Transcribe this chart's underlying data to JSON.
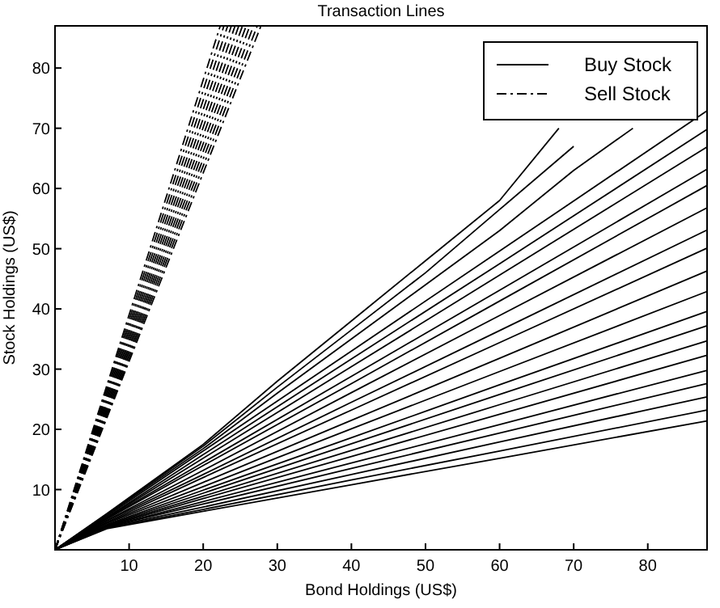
{
  "chart_data": {
    "type": "line",
    "title": "Transaction Lines",
    "xlabel": "Bond Holdings (US$)",
    "ylabel": "Stock Holdings (US$)",
    "xlim": [
      0,
      88
    ],
    "ylim": [
      0,
      87
    ],
    "xticks": [
      10,
      20,
      30,
      40,
      50,
      60,
      70,
      80
    ],
    "yticks": [
      10,
      20,
      30,
      40,
      50,
      60,
      70,
      80
    ],
    "grid": false,
    "legend": "top right",
    "marker": "none",
    "series": [
      {
        "name": "Buy Stock",
        "color": "#000000",
        "line_style": "solid",
        "x": [
          0,
          7,
          20,
          40,
          60,
          88
        ],
        "values": [
          0,
          3.5,
          6.4,
          10.8,
          15.2,
          21.4
        ]
      },
      {
        "color": "#000000",
        "line_style": "solid",
        "x": [
          0,
          7,
          20,
          40,
          60,
          88
        ],
        "values": [
          0,
          3.6,
          6.7,
          11.6,
          16.4,
          23.2
        ]
      },
      {
        "color": "#000000",
        "line_style": "solid",
        "x": [
          0,
          7,
          20,
          40,
          60,
          88
        ],
        "values": [
          0,
          3.7,
          7.1,
          12.5,
          17.9,
          25.4
        ]
      },
      {
        "color": "#000000",
        "line_style": "solid",
        "x": [
          0,
          7,
          20,
          40,
          60,
          88
        ],
        "values": [
          0,
          3.8,
          7.6,
          13.5,
          19.4,
          27.6
        ]
      },
      {
        "color": "#000000",
        "line_style": "solid",
        "x": [
          0,
          7,
          20,
          40,
          60,
          88
        ],
        "values": [
          0,
          3.8,
          8.0,
          14.4,
          20.8,
          29.8
        ]
      },
      {
        "color": "#000000",
        "line_style": "solid",
        "x": [
          0,
          7,
          20,
          40,
          60,
          88
        ],
        "values": [
          0,
          3.9,
          8.5,
          15.5,
          22.5,
          32.3
        ]
      },
      {
        "color": "#000000",
        "line_style": "solid",
        "x": [
          0,
          7,
          20,
          40,
          60,
          88
        ],
        "values": [
          0,
          4.0,
          8.9,
          16.5,
          24.1,
          34.7
        ]
      },
      {
        "color": "#000000",
        "line_style": "solid",
        "x": [
          0,
          7,
          20,
          40,
          60,
          88
        ],
        "values": [
          0,
          4.1,
          9.4,
          17.6,
          25.8,
          37.2
        ]
      },
      {
        "color": "#000000",
        "line_style": "solid",
        "x": [
          0,
          7,
          20,
          40,
          60,
          88
        ],
        "values": [
          0,
          4.2,
          9.9,
          18.6,
          27.4,
          39.6
        ]
      },
      {
        "color": "#000000",
        "line_style": "solid",
        "x": [
          0,
          7,
          20,
          40,
          60,
          88
        ],
        "values": [
          0,
          4.4,
          10.5,
          20.1,
          29.6,
          42.9
        ]
      },
      {
        "color": "#000000",
        "line_style": "solid",
        "x": [
          0,
          7,
          20,
          40,
          60,
          88
        ],
        "values": [
          0,
          4.5,
          11.2,
          21.5,
          31.8,
          46.3
        ]
      },
      {
        "color": "#000000",
        "line_style": "solid",
        "x": [
          0,
          7,
          20,
          40,
          60,
          88
        ],
        "values": [
          0,
          4.6,
          12.0,
          23.2,
          34.4,
          50.1
        ]
      },
      {
        "color": "#000000",
        "line_style": "solid",
        "x": [
          0,
          7,
          20,
          40,
          60,
          88
        ],
        "values": [
          0,
          4.8,
          12.5,
          24.5,
          36.4,
          53.1
        ]
      },
      {
        "color": "#000000",
        "line_style": "solid",
        "x": [
          0,
          7,
          20,
          40,
          60,
          88
        ],
        "values": [
          0,
          4.9,
          13.2,
          26.1,
          38.9,
          56.8
        ]
      },
      {
        "color": "#000000",
        "line_style": "solid",
        "x": [
          0,
          7,
          20,
          40,
          60,
          88
        ],
        "values": [
          0,
          5.1,
          14.0,
          27.6,
          41.3,
          60.5
        ]
      },
      {
        "color": "#000000",
        "line_style": "solid",
        "x": [
          0,
          7,
          20,
          40,
          60,
          88
        ],
        "values": [
          0,
          5.2,
          14.5,
          28.8,
          43.1,
          63.2
        ]
      },
      {
        "color": "#000000",
        "line_style": "solid",
        "x": [
          0,
          7,
          20,
          40,
          60,
          88
        ],
        "values": [
          0,
          5.3,
          15.2,
          30.4,
          45.6,
          66.9
        ]
      },
      {
        "color": "#000000",
        "line_style": "solid",
        "x": [
          0,
          7,
          20,
          40,
          60,
          88
        ],
        "values": [
          0,
          5.4,
          15.8,
          31.7,
          47.5,
          69.8
        ]
      },
      {
        "color": "#000000",
        "line_style": "solid",
        "x": [
          0,
          7,
          20,
          40,
          60,
          88
        ],
        "values": [
          0,
          5.6,
          16.4,
          33.0,
          49.6,
          72.9
        ]
      },
      {
        "color": "#000000",
        "line_style": "solid",
        "x": [
          0,
          7,
          20,
          30,
          40,
          50,
          60,
          70,
          78
        ],
        "values": [
          0,
          5.8,
          16.8,
          26,
          35,
          44,
          53,
          63,
          70
        ]
      },
      {
        "color": "#000000",
        "line_style": "solid",
        "x": [
          0,
          7,
          20,
          30,
          40,
          50,
          60,
          70
        ],
        "values": [
          0,
          5.9,
          17.2,
          27,
          36.5,
          46,
          56.5,
          67
        ]
      },
      {
        "color": "#000000",
        "line_style": "solid",
        "x": [
          0,
          7,
          20,
          30,
          40,
          50,
          60,
          68
        ],
        "values": [
          0,
          6,
          17.5,
          28,
          38,
          48,
          58,
          70
        ]
      },
      {
        "name": "Sell Stock",
        "color": "#000000",
        "line_style": "dashdot",
        "x": [
          0,
          22.3
        ],
        "values": [
          0,
          87
        ]
      },
      {
        "color": "#000000",
        "line_style": "dashdot",
        "x": [
          0,
          22.8
        ],
        "values": [
          0,
          87
        ]
      },
      {
        "color": "#000000",
        "line_style": "dashdot",
        "x": [
          0,
          23.3
        ],
        "values": [
          0,
          87
        ]
      },
      {
        "color": "#000000",
        "line_style": "dashdot",
        "x": [
          0,
          23.8
        ],
        "values": [
          0,
          87
        ]
      },
      {
        "color": "#000000",
        "line_style": "dashdot",
        "x": [
          0,
          24.3
        ],
        "values": [
          0,
          87
        ]
      },
      {
        "color": "#000000",
        "line_style": "dashdot",
        "x": [
          0,
          24.8
        ],
        "values": [
          0,
          87
        ]
      },
      {
        "color": "#000000",
        "line_style": "dashdot",
        "x": [
          0,
          25.3
        ],
        "values": [
          0,
          87
        ]
      },
      {
        "color": "#000000",
        "line_style": "dashdot",
        "x": [
          0,
          25.8
        ],
        "values": [
          0,
          87
        ]
      },
      {
        "color": "#000000",
        "line_style": "dashdot",
        "x": [
          0,
          26.3
        ],
        "values": [
          0,
          87
        ]
      },
      {
        "color": "#000000",
        "line_style": "dashdot",
        "x": [
          0,
          26.8
        ],
        "values": [
          0,
          87
        ]
      },
      {
        "color": "#000000",
        "line_style": "dashdot",
        "x": [
          0,
          27.3
        ],
        "values": [
          0,
          87
        ]
      },
      {
        "color": "#000000",
        "line_style": "dashdot",
        "x": [
          0,
          27.8
        ],
        "values": [
          0,
          87
        ]
      }
    ]
  }
}
